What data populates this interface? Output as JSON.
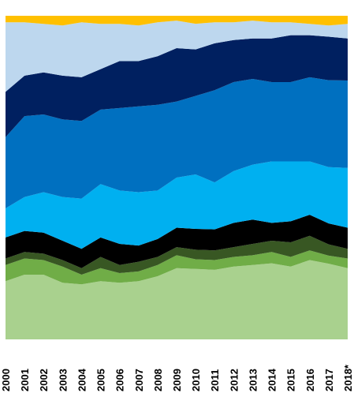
{
  "chart_data": {
    "type": "area",
    "stacked": true,
    "normalized": true,
    "title": "",
    "xlabel": "",
    "ylabel": "",
    "ylim": [
      0,
      100
    ],
    "grid": false,
    "legend": "none",
    "categories": [
      "2000",
      "2001",
      "2002",
      "2003",
      "2004",
      "2005",
      "2006",
      "2007",
      "2008",
      "2009",
      "2010",
      "2011",
      "2012",
      "2013",
      "2014",
      "2015",
      "2016",
      "2017",
      "2018*"
    ],
    "series": [
      {
        "color": "#a9d18e",
        "values": [
          18.0,
          20.0,
          20.0,
          17.5,
          17.0,
          18.0,
          17.5,
          18.0,
          19.5,
          22.0,
          22.0,
          21.5,
          22.5,
          23.0,
          23.5,
          22.5,
          24.5,
          23.5,
          22.0
        ]
      },
      {
        "color": "#70ad47",
        "values": [
          5.0,
          5.0,
          4.5,
          5.0,
          3.0,
          4.0,
          3.0,
          3.0,
          3.5,
          4.0,
          3.0,
          3.0,
          3.0,
          3.0,
          3.5,
          3.0,
          3.0,
          2.5,
          3.0
        ]
      },
      {
        "color": "#385723",
        "values": [
          2.0,
          2.0,
          2.0,
          2.0,
          2.0,
          3.5,
          2.5,
          3.0,
          2.5,
          2.5,
          3.0,
          3.0,
          3.0,
          3.5,
          3.5,
          4.5,
          4.5,
          3.5,
          3.0
        ]
      },
      {
        "color": "#000000",
        "values": [
          6.5,
          6.5,
          6.5,
          6.0,
          6.0,
          6.0,
          6.5,
          5.0,
          5.5,
          6.0,
          6.5,
          6.5,
          7.5,
          7.5,
          5.5,
          6.5,
          6.5,
          6.5,
          6.5
        ]
      },
      {
        "color": "#00b0f0",
        "values": [
          9.0,
          10.5,
          12.5,
          13.5,
          15.5,
          16.5,
          16.5,
          16.5,
          15.0,
          15.5,
          17.0,
          14.5,
          16.0,
          17.0,
          19.0,
          18.5,
          16.5,
          17.5,
          18.5
        ]
      },
      {
        "color": "#0070c0",
        "values": [
          22.0,
          25.0,
          24.0,
          24.0,
          24.0,
          23.0,
          25.5,
          26.5,
          26.5,
          23.5,
          24.5,
          28.5,
          27.5,
          26.5,
          24.5,
          24.5,
          26.0,
          27.0,
          27.0
        ]
      },
      {
        "color": "#002060",
        "values": [
          14.0,
          12.5,
          13.0,
          13.5,
          13.5,
          12.5,
          14.5,
          14.0,
          15.0,
          16.5,
          14.5,
          14.5,
          13.0,
          12.5,
          13.5,
          14.5,
          13.0,
          13.5,
          13.0
        ]
      },
      {
        "color": "#bdd7ee",
        "values": [
          21.5,
          16.5,
          15.0,
          15.5,
          17.0,
          14.0,
          11.5,
          11.0,
          10.5,
          8.5,
          8.0,
          6.5,
          5.5,
          5.5,
          5.0,
          4.0,
          3.5,
          3.5,
          4.5
        ]
      },
      {
        "color": "#ffc000",
        "values": [
          2.0,
          2.0,
          2.5,
          3.0,
          2.0,
          2.5,
          2.5,
          3.0,
          2.0,
          1.5,
          2.5,
          2.0,
          2.0,
          1.5,
          2.0,
          2.0,
          2.5,
          3.0,
          2.5
        ]
      }
    ]
  }
}
